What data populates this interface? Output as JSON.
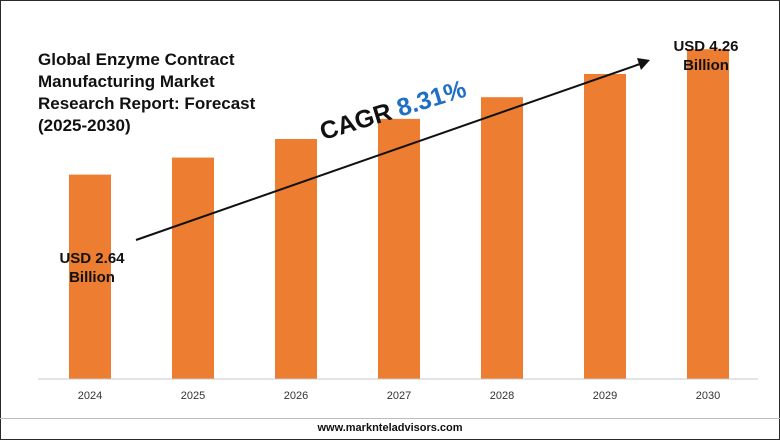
{
  "title": "Global Enzyme Contract Manufacturing Market Research Report: Forecast (2025-2030)",
  "annotations": {
    "start_value": "USD 2.64",
    "start_unit": "Billion",
    "end_value": "USD 4.26",
    "end_unit": "Billion",
    "cagr_label": "CAGR",
    "cagr_value": "8.31%"
  },
  "footer": "www.marknteladvisors.com",
  "colors": {
    "bar": "#ed7d31",
    "cagr_value": "#1f6fc6",
    "text": "#111111"
  },
  "chart_data": {
    "type": "bar",
    "categories": [
      "2024",
      "2025",
      "2026",
      "2027",
      "2028",
      "2029",
      "2030"
    ],
    "values": [
      2.64,
      2.86,
      3.1,
      3.36,
      3.64,
      3.94,
      4.26
    ],
    "title": "Global Enzyme Contract Manufacturing Market Research Report: Forecast (2025-2030)",
    "xlabel": "",
    "ylabel": "",
    "unit": "USD Billion",
    "ylim": [
      0,
      4.65
    ],
    "grid": false,
    "legend": "none"
  }
}
